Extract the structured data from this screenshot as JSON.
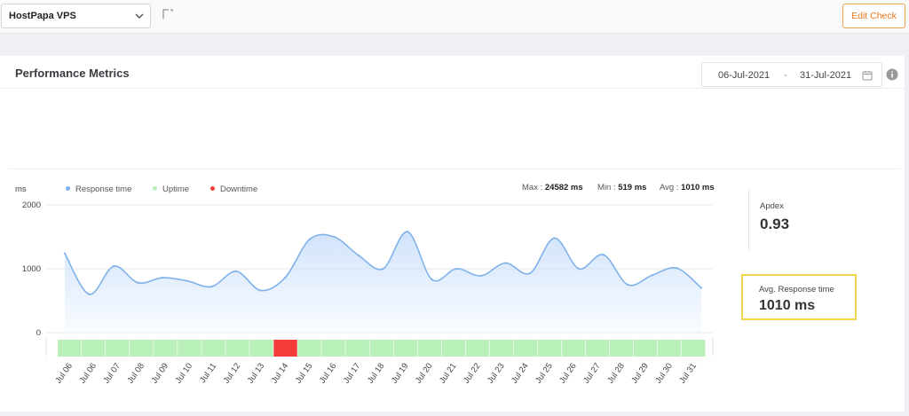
{
  "topbar": {
    "check_select": "HostPapa VPS",
    "edit_button": "Edit Check"
  },
  "card": {
    "title": "Performance Metrics",
    "date_from": "06-Jul-2021",
    "date_sep": "-",
    "date_to": "31-Jul-2021"
  },
  "legend": {
    "unit": "ms",
    "response_time": "Response time",
    "uptime": "Uptime",
    "downtime": "Downtime"
  },
  "stats": {
    "max_label": "Max : ",
    "max_value": "24582 ms",
    "min_label": "Min : ",
    "min_value": "519 ms",
    "avg_label": "Avg : ",
    "avg_value": "1010 ms"
  },
  "apdex": {
    "label": "Apdex",
    "value": "0.93"
  },
  "avg_response": {
    "label": "Avg. Response time",
    "value": "1010 ms"
  },
  "colors": {
    "accent": "#e8751a",
    "line": "#7fb2ea",
    "fill": "#cfe2fb",
    "uptime": "#b9efb9",
    "downtime": "#f53a3a",
    "highlight": "#f2d548"
  },
  "chart_data": {
    "type": "area",
    "ylabel": "ms",
    "ylim": [
      0,
      2000
    ],
    "yticks": [
      0,
      1000,
      2000
    ],
    "x_labels": [
      "Jul 06",
      "Jul 06",
      "Jul 07",
      "Jul 08",
      "Jul 09",
      "Jul 10",
      "Jul 11",
      "Jul 12",
      "Jul 13",
      "Jul 14",
      "Jul 15",
      "Jul 16",
      "Jul 17",
      "Jul 18",
      "Jul 19",
      "Jul 20",
      "Jul 21",
      "Jul 22",
      "Jul 23",
      "Jul 24",
      "Jul 25",
      "Jul 26",
      "Jul 27",
      "Jul 28",
      "Jul 29",
      "Jul 30",
      "Jul 31"
    ],
    "series": [
      {
        "name": "Response time",
        "values": [
          1240,
          600,
          1040,
          780,
          860,
          810,
          720,
          960,
          660,
          860,
          1460,
          1500,
          1210,
          1000,
          1580,
          830,
          1000,
          890,
          1090,
          930,
          1480,
          1000,
          1220,
          750,
          900,
          1010,
          700
        ]
      }
    ],
    "status_bar": [
      "up",
      "up",
      "up",
      "up",
      "up",
      "up",
      "up",
      "up",
      "up",
      "down",
      "up",
      "up",
      "up",
      "up",
      "up",
      "up",
      "up",
      "up",
      "up",
      "up",
      "up",
      "up",
      "up",
      "up",
      "up",
      "up",
      "up"
    ],
    "status_legend": {
      "up": "Uptime",
      "down": "Downtime"
    },
    "grid": true,
    "legend_position": "top-left"
  }
}
